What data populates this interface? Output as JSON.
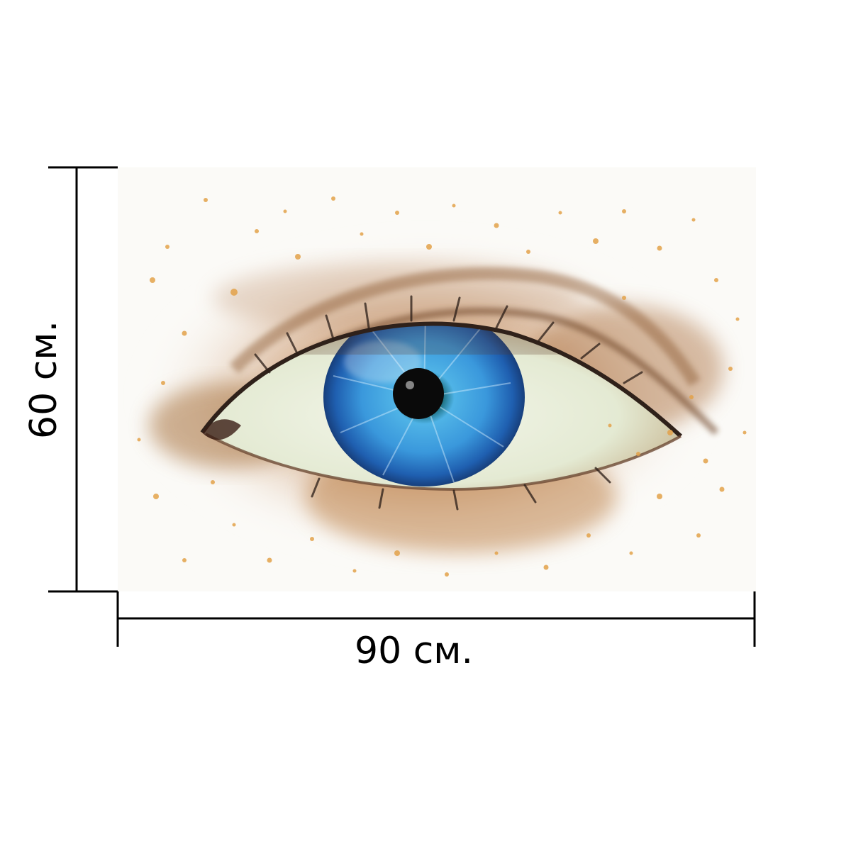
{
  "dimensions": {
    "width_label": "90 см.",
    "height_label": "60 см."
  },
  "artwork": {
    "subject": "eye-illustration",
    "iris_color": "#2f8fd8",
    "splatter_color": "#e3a24a",
    "wash_color": "#b07a4a",
    "lash_color": "#3a2a22"
  }
}
